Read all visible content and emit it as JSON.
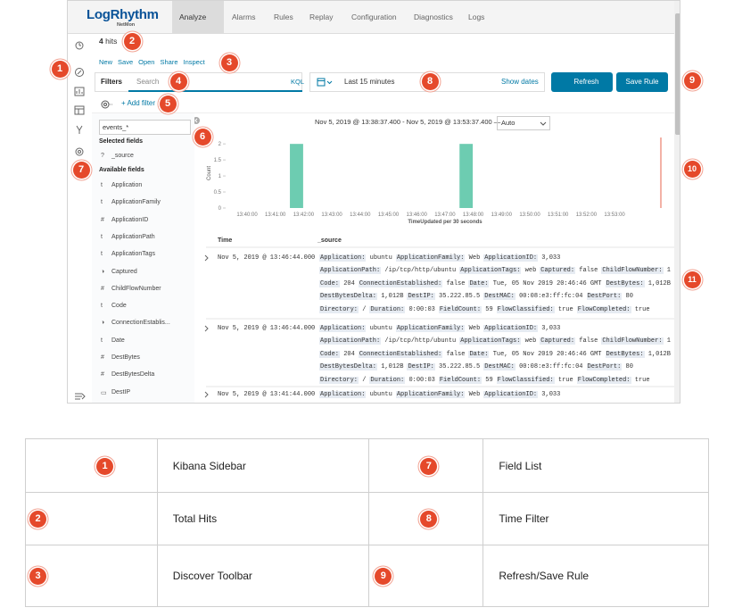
{
  "header": {
    "logo": "LogRhythm",
    "logo_sub": "NetMon",
    "nav": [
      "Analyze",
      "Alarms",
      "Rules",
      "Replay",
      "Configuration",
      "Diagnostics",
      "Logs"
    ]
  },
  "hits": {
    "count": "4",
    "label": "hits"
  },
  "toolbar": [
    "New",
    "Save",
    "Open",
    "Share",
    "Inspect"
  ],
  "query": {
    "filters": "Filters",
    "placeholder": "Search",
    "language": "KQL"
  },
  "time_filter": {
    "range": "Last 15 minutes",
    "show_dates": "Show dates"
  },
  "buttons": {
    "refresh": "Refresh",
    "save_rule": "Save Rule"
  },
  "add_filter": "+ Add filter",
  "field_list": {
    "index": "events_*",
    "selected_title": "Selected fields",
    "selected": [
      {
        "type": "?",
        "name": "_source"
      }
    ],
    "available_title": "Available fields",
    "available": [
      {
        "type": "t",
        "name": "Application"
      },
      {
        "type": "t",
        "name": "ApplicationFamily"
      },
      {
        "type": "#",
        "name": "ApplicationID"
      },
      {
        "type": "t",
        "name": "ApplicationPath"
      },
      {
        "type": "t",
        "name": "ApplicationTags"
      },
      {
        "type": "◑",
        "name": "Captured"
      },
      {
        "type": "#",
        "name": "ChildFlowNumber"
      },
      {
        "type": "t",
        "name": "Code"
      },
      {
        "type": "◑",
        "name": "ConnectionEstablis..."
      },
      {
        "type": "t",
        "name": "Date"
      },
      {
        "type": "#",
        "name": "DestBytes"
      },
      {
        "type": "#",
        "name": "DestBytesDelta"
      },
      {
        "type": "▭",
        "name": "DestIP"
      }
    ]
  },
  "histogram": {
    "type": "histogram",
    "range": "Nov 5, 2019 @ 13:38:37.400 - Nov 5, 2019 @ 13:53:37.400 —",
    "interval": "Auto",
    "y_label": "Count",
    "x_label": "TimeUpdated per 30 seconds",
    "ylim": [
      0,
      2.2
    ],
    "yticks": [
      0,
      0.5,
      1,
      1.5,
      2
    ],
    "xticks": [
      "13:40:00",
      "13:41:00",
      "13:42:00",
      "13:43:00",
      "13:44:00",
      "13:45:00",
      "13:46:00",
      "13:47:00",
      "13:48:00",
      "13:49:00",
      "13:50:00",
      "13:51:00",
      "13:52:00",
      "13:53:00"
    ],
    "counts": [
      0,
      0,
      0,
      0,
      0,
      0,
      2,
      0,
      0,
      0,
      0,
      0,
      0,
      0,
      0,
      0,
      0,
      0,
      2,
      0,
      0,
      0,
      0,
      0,
      0,
      0,
      0,
      0,
      0,
      0
    ],
    "color": "#6dccb1"
  },
  "documents": {
    "columns": [
      "Time",
      "_source"
    ],
    "rows": [
      {
        "time": "Nov 5, 2019 @ 13:46:44.000",
        "source": [
          [
            [
              "Application:",
              "ubuntu"
            ],
            [
              "ApplicationFamily:",
              "Web"
            ],
            [
              "ApplicationID:",
              "3,033"
            ]
          ],
          [
            [
              "ApplicationPath:",
              "/ip/tcp/http/ubuntu"
            ],
            [
              "ApplicationTags:",
              "web"
            ],
            [
              "Captured:",
              "false"
            ],
            [
              "ChildFlowNumber:",
              "1"
            ]
          ],
          [
            [
              "Code:",
              "204"
            ],
            [
              "ConnectionEstablished:",
              "false"
            ],
            [
              "Date:",
              "Tue, 05 Nov 2019 20:46:46 GMT"
            ],
            [
              "DestBytes:",
              "1,012B"
            ]
          ],
          [
            [
              "DestBytesDelta:",
              "1,012B"
            ],
            [
              "DestIP:",
              "35.222.85.5"
            ],
            [
              "DestMAC:",
              "00:08:e3:ff:fc:04"
            ],
            [
              "DestPort:",
              "80"
            ]
          ],
          [
            [
              "Directory:",
              "/"
            ],
            [
              "Duration:",
              "0:00:03"
            ],
            [
              "FieldCount:",
              "59"
            ],
            [
              "FlowClassified:",
              "true"
            ],
            [
              "FlowCompleted:",
              "true"
            ]
          ]
        ]
      },
      {
        "time": "Nov 5, 2019 @ 13:46:44.000",
        "source": [
          [
            [
              "Application:",
              "ubuntu"
            ],
            [
              "ApplicationFamily:",
              "Web"
            ],
            [
              "ApplicationID:",
              "3,033"
            ]
          ],
          [
            [
              "ApplicationPath:",
              "/ip/tcp/http/ubuntu"
            ],
            [
              "ApplicationTags:",
              "web"
            ],
            [
              "Captured:",
              "false"
            ],
            [
              "ChildFlowNumber:",
              "1"
            ]
          ],
          [
            [
              "Code:",
              "204"
            ],
            [
              "ConnectionEstablished:",
              "false"
            ],
            [
              "Date:",
              "Tue, 05 Nov 2019 20:46:46 GMT"
            ],
            [
              "DestBytes:",
              "1,012B"
            ]
          ],
          [
            [
              "DestBytesDelta:",
              "1,012B"
            ],
            [
              "DestIP:",
              "35.222.85.5"
            ],
            [
              "DestMAC:",
              "00:08:e3:ff:fc:04"
            ],
            [
              "DestPort:",
              "80"
            ]
          ],
          [
            [
              "Directory:",
              "/"
            ],
            [
              "Duration:",
              "0:00:03"
            ],
            [
              "FieldCount:",
              "59"
            ],
            [
              "FlowClassified:",
              "true"
            ],
            [
              "FlowCompleted:",
              "true"
            ]
          ]
        ]
      },
      {
        "time": "Nov 5, 2019 @ 13:41:44.000",
        "source": [
          [
            [
              "Application:",
              "ubuntu"
            ],
            [
              "ApplicationFamily:",
              "Web"
            ],
            [
              "ApplicationID:",
              "3,033"
            ]
          ]
        ]
      }
    ]
  },
  "callouts": [
    "1",
    "2",
    "3",
    "4",
    "5",
    "6",
    "7",
    "8",
    "9",
    "10",
    "11"
  ],
  "legend_table": {
    "rows": [
      [
        "1",
        "Kibana Sidebar",
        "7",
        "Field List"
      ],
      [
        "2",
        "Total Hits",
        "8",
        "Time Filter"
      ],
      [
        "3",
        "Discover Toolbar",
        "9",
        "Refresh/Save Rule"
      ]
    ]
  }
}
